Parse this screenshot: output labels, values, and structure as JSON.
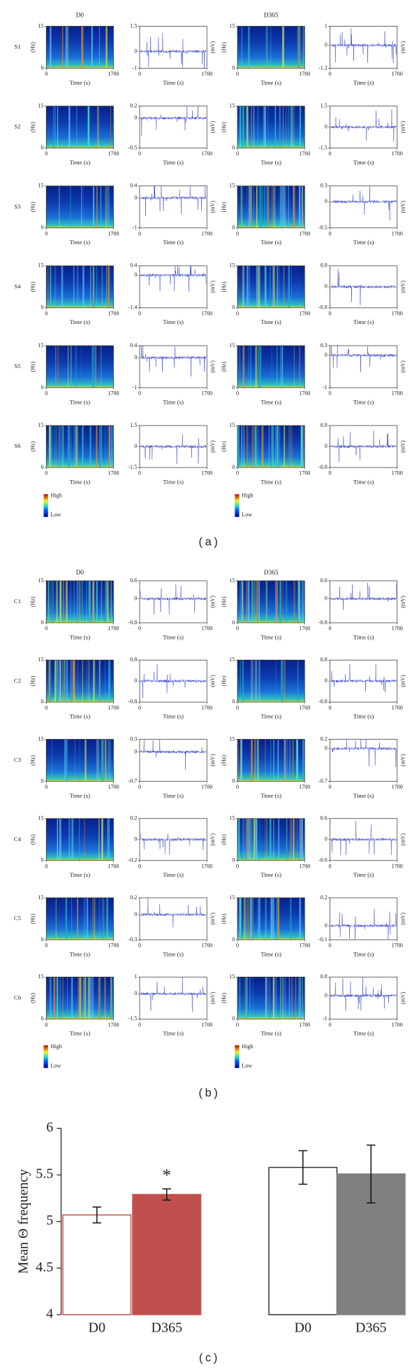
{
  "panels": [
    {
      "label": "(a)",
      "columns": [
        "D0",
        "D365"
      ],
      "rows": [
        {
          "label": "S1",
          "traces": [
            {
              "ylim": [
                -1,
                1.5
              ],
              "yticks": [
                1.5,
                0,
                -1
              ]
            },
            {
              "ylim": [
                -1.2,
                1
              ],
              "yticks": [
                1,
                0,
                -1.2
              ]
            }
          ]
        },
        {
          "label": "S2",
          "traces": [
            {
              "ylim": [
                -0.5,
                0.2
              ],
              "yticks": [
                0.2,
                0,
                -0.5
              ]
            },
            {
              "ylim": [
                -1.5,
                1.5
              ],
              "yticks": [
                1.5,
                0,
                -1.5
              ]
            }
          ]
        },
        {
          "label": "S3",
          "traces": [
            {
              "ylim": [
                -1,
                0.4
              ],
              "yticks": [
                0.4,
                0,
                -1
              ]
            },
            {
              "ylim": [
                -0.5,
                0.3
              ],
              "yticks": [
                0.3,
                0,
                -0.5
              ]
            }
          ]
        },
        {
          "label": "S4",
          "traces": [
            {
              "ylim": [
                -1.4,
                0.4
              ],
              "yticks": [
                0.4,
                0,
                -1.4
              ]
            },
            {
              "ylim": [
                -0.8,
                0.8
              ],
              "yticks": [
                0.8,
                0,
                -0.8
              ]
            }
          ]
        },
        {
          "label": "S5",
          "traces": [
            {
              "ylim": [
                -1,
                0.4
              ],
              "yticks": [
                0.4,
                0,
                -1
              ]
            },
            {
              "ylim": [
                -1,
                0.3
              ],
              "yticks": [
                0.3,
                0,
                -1
              ]
            }
          ]
        },
        {
          "label": "S6",
          "traces": [
            {
              "ylim": [
                -1.5,
                1.5
              ],
              "yticks": [
                1.5,
                0,
                -1.5
              ]
            },
            {
              "ylim": [
                -0.8,
                0.8
              ],
              "yticks": [
                0.8,
                0,
                -0.8
              ]
            }
          ]
        }
      ]
    },
    {
      "label": "(b)",
      "columns": [
        "D0",
        "D365"
      ],
      "rows": [
        {
          "label": "C1",
          "traces": [
            {
              "ylim": [
                -0.8,
                0.6
              ],
              "yticks": [
                0.6,
                0,
                -0.8
              ]
            },
            {
              "ylim": [
                -0.8,
                0.6
              ],
              "yticks": [
                0.6,
                0,
                -0.8
              ]
            }
          ]
        },
        {
          "label": "C2",
          "traces": [
            {
              "ylim": [
                -0.8,
                0.8
              ],
              "yticks": [
                0.8,
                0,
                -0.8
              ]
            },
            {
              "ylim": [
                -0.8,
                0.8
              ],
              "yticks": [
                0.8,
                0,
                -0.8
              ]
            }
          ]
        },
        {
          "label": "C3",
          "traces": [
            {
              "ylim": [
                -0.7,
                0.3
              ],
              "yticks": [
                0.3,
                0,
                -0.7
              ]
            },
            {
              "ylim": [
                -0.7,
                0.2
              ],
              "yticks": [
                0.2,
                0,
                -0.7
              ]
            }
          ]
        },
        {
          "label": "C4",
          "traces": [
            {
              "ylim": [
                -0.2,
                0.2
              ],
              "yticks": [
                0.2,
                0,
                -0.2
              ]
            },
            {
              "ylim": [
                -0.6,
                0.6
              ],
              "yticks": [
                0.6,
                0,
                -0.6
              ]
            }
          ]
        },
        {
          "label": "C5",
          "traces": [
            {
              "ylim": [
                -0.3,
                0.2
              ],
              "yticks": [
                0.2,
                0,
                -0.3
              ]
            },
            {
              "ylim": [
                -0.1,
                0.2
              ],
              "yticks": [
                0.2,
                0,
                -0.1
              ]
            }
          ]
        },
        {
          "label": "C6",
          "traces": [
            {
              "ylim": [
                -1.5,
                1
              ],
              "yticks": [
                1,
                0,
                -1.5
              ]
            },
            {
              "ylim": [
                -1,
                0.8
              ],
              "yticks": [
                0.8,
                0,
                -1
              ]
            }
          ]
        }
      ]
    }
  ],
  "spectrogram": {
    "ylim": [
      0,
      15
    ],
    "yticks": [
      0,
      15
    ],
    "y_label": "(Hz)"
  },
  "time_axis": {
    "xlim": [
      0,
      1700
    ],
    "xticks": [
      0,
      1700
    ],
    "label": "Time (s)"
  },
  "trace_y_label": "(mV)",
  "colorbar": [
    "High",
    "Low"
  ],
  "chart_data": {
    "type": "bar",
    "panel_label": "(c)",
    "y_label": "Mean Θ frequency",
    "categories": [
      "D0",
      "D365",
      "D0",
      "D365"
    ],
    "values": [
      5.07,
      5.29,
      5.58,
      5.51
    ],
    "errors": [
      0.085,
      0.06,
      0.18,
      0.31
    ],
    "colors": [
      "#ffffff",
      "#c0504d",
      "#ffffff",
      "#808080"
    ],
    "edge_colors": [
      "#c0504d",
      "#c0504d",
      "#333333",
      "#808080"
    ],
    "significance": [
      null,
      "*",
      null,
      null
    ],
    "ylim": [
      4,
      6
    ],
    "yticks": [
      4,
      4.5,
      5,
      5.5,
      6
    ]
  }
}
